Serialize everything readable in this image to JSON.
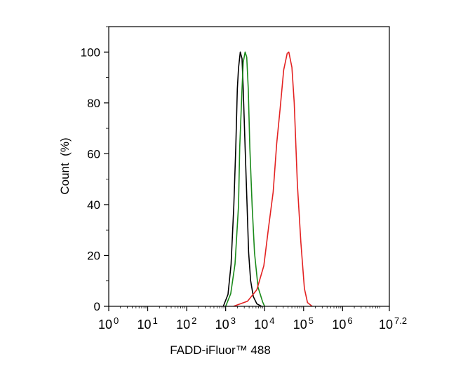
{
  "chart_data": {
    "type": "line",
    "title": "",
    "xlabel": "FADD-iFluor™ 488",
    "ylabel": "Count  (%)",
    "x_scale": "log10",
    "xlim": [
      1,
      15848932
    ],
    "ylim": [
      0,
      110
    ],
    "x_ticks": [
      {
        "base": "10",
        "exp": "0",
        "log": 0
      },
      {
        "base": "10",
        "exp": "1",
        "log": 1
      },
      {
        "base": "10",
        "exp": "2",
        "log": 2
      },
      {
        "base": "10",
        "exp": "3",
        "log": 3
      },
      {
        "base": "10",
        "exp": "4",
        "log": 4
      },
      {
        "base": "10",
        "exp": "5",
        "log": 5
      },
      {
        "base": "10",
        "exp": "6",
        "log": 6
      },
      {
        "base": "10",
        "exp": "7.2",
        "log": 7.2
      }
    ],
    "y_ticks": [
      "0",
      "20",
      "40",
      "60",
      "80",
      "100"
    ],
    "grid": false,
    "series": [
      {
        "color": "#000000",
        "log10_x": [
          2.94,
          3.06,
          3.14,
          3.21,
          3.26,
          3.3,
          3.33,
          3.375,
          3.42,
          3.45,
          3.5,
          3.55,
          3.59,
          3.64,
          3.71,
          3.8,
          3.92
        ],
        "y": [
          0,
          4.7,
          16.6,
          39.6,
          62.5,
          85.5,
          93.7,
          100,
          97.4,
          85.5,
          62.5,
          39.6,
          21.2,
          10.2,
          3.8,
          1,
          0
        ]
      },
      {
        "color": "#1a8a1a",
        "log10_x": [
          3.0,
          3.13,
          3.24,
          3.33,
          3.36,
          3.42,
          3.45,
          3.5,
          3.54,
          3.58,
          3.62,
          3.68,
          3.74,
          3.83,
          3.95,
          4.0
        ],
        "y": [
          0,
          5,
          16.6,
          39.6,
          62.5,
          85.5,
          96,
          100,
          98,
          85.5,
          62.5,
          39.6,
          21,
          7.5,
          1.7,
          0
        ]
      },
      {
        "color": "#e32222",
        "log10_x": [
          3.2,
          3.56,
          3.8,
          3.98,
          4.1,
          4.22,
          4.31,
          4.4,
          4.49,
          4.58,
          4.62,
          4.7,
          4.76,
          4.84,
          4.93,
          5.02,
          5.1,
          5.22
        ],
        "y": [
          0,
          2,
          6.5,
          16,
          31,
          45,
          64,
          78,
          93,
          99.5,
          100,
          94,
          80,
          48,
          25,
          7,
          1.5,
          0
        ]
      }
    ]
  }
}
